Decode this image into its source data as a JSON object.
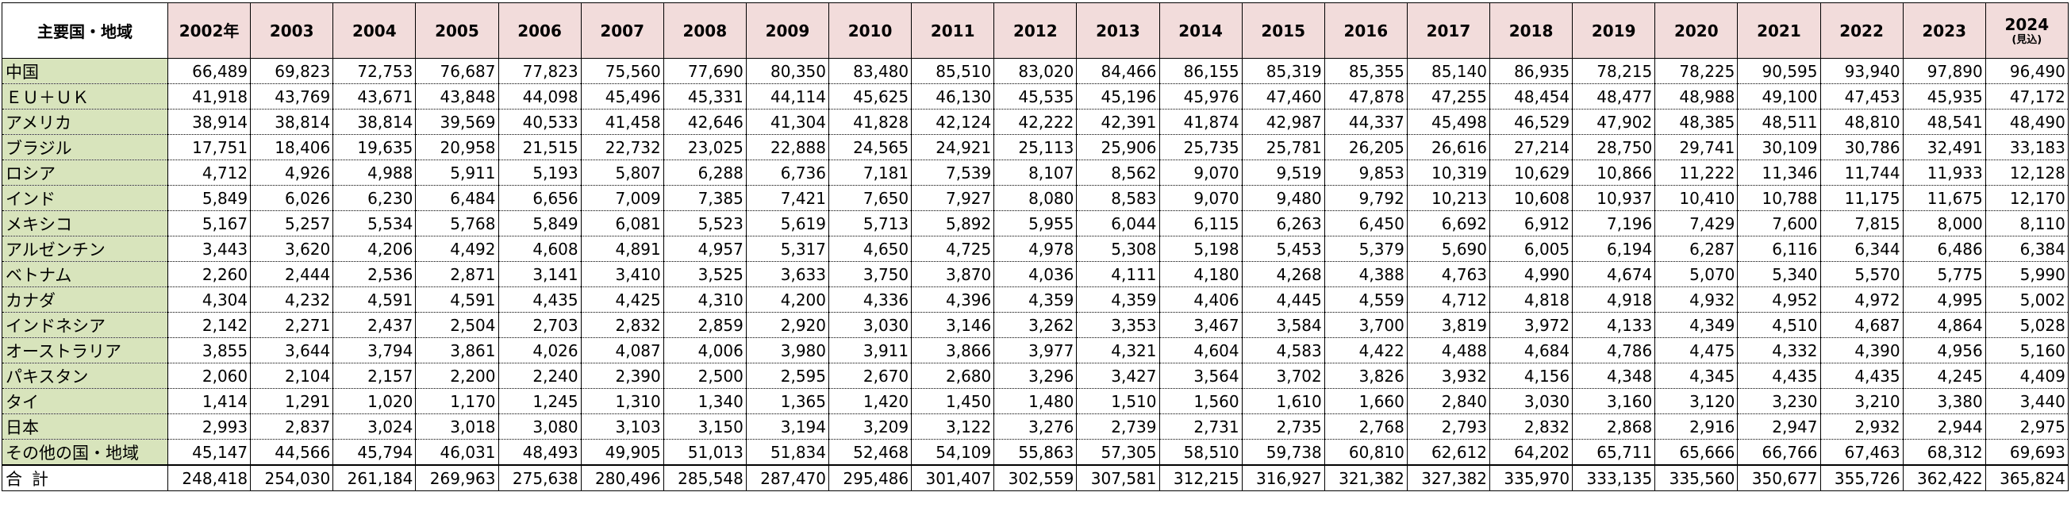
{
  "table": {
    "corner_label": "主要国・地域",
    "years": [
      {
        "label": "2002年",
        "note": ""
      },
      {
        "label": "2003",
        "note": ""
      },
      {
        "label": "2004",
        "note": ""
      },
      {
        "label": "2005",
        "note": ""
      },
      {
        "label": "2006",
        "note": ""
      },
      {
        "label": "2007",
        "note": ""
      },
      {
        "label": "2008",
        "note": ""
      },
      {
        "label": "2009",
        "note": ""
      },
      {
        "label": "2010",
        "note": ""
      },
      {
        "label": "2011",
        "note": ""
      },
      {
        "label": "2012",
        "note": ""
      },
      {
        "label": "2013",
        "note": ""
      },
      {
        "label": "2014",
        "note": ""
      },
      {
        "label": "2015",
        "note": ""
      },
      {
        "label": "2016",
        "note": ""
      },
      {
        "label": "2017",
        "note": ""
      },
      {
        "label": "2018",
        "note": ""
      },
      {
        "label": "2019",
        "note": ""
      },
      {
        "label": "2020",
        "note": ""
      },
      {
        "label": "2021",
        "note": ""
      },
      {
        "label": "2022",
        "note": ""
      },
      {
        "label": "2023",
        "note": ""
      },
      {
        "label": "2024",
        "note": "(見込)"
      }
    ],
    "rows": [
      {
        "name": "中国",
        "values": [
          "66,489",
          "69,823",
          "72,753",
          "76,687",
          "77,823",
          "75,560",
          "77,690",
          "80,350",
          "83,480",
          "85,510",
          "83,020",
          "84,466",
          "86,155",
          "85,319",
          "85,355",
          "85,140",
          "86,935",
          "78,215",
          "78,225",
          "90,595",
          "93,940",
          "97,890",
          "96,490"
        ]
      },
      {
        "name": "ＥＵ＋ＵＫ",
        "values": [
          "41,918",
          "43,769",
          "43,671",
          "43,848",
          "44,098",
          "45,496",
          "45,331",
          "44,114",
          "45,625",
          "46,130",
          "45,535",
          "45,196",
          "45,976",
          "47,460",
          "47,878",
          "47,255",
          "48,454",
          "48,477",
          "48,988",
          "49,100",
          "47,453",
          "45,935",
          "47,172"
        ]
      },
      {
        "name": "アメリカ",
        "values": [
          "38,914",
          "38,814",
          "38,814",
          "39,569",
          "40,533",
          "41,458",
          "42,646",
          "41,304",
          "41,828",
          "42,124",
          "42,222",
          "42,391",
          "41,874",
          "42,987",
          "44,337",
          "45,498",
          "46,529",
          "47,902",
          "48,385",
          "48,511",
          "48,810",
          "48,541",
          "48,490"
        ]
      },
      {
        "name": "ブラジル",
        "values": [
          "17,751",
          "18,406",
          "19,635",
          "20,958",
          "21,515",
          "22,732",
          "23,025",
          "22,888",
          "24,565",
          "24,921",
          "25,113",
          "25,906",
          "25,735",
          "25,781",
          "26,205",
          "26,616",
          "27,214",
          "28,750",
          "29,741",
          "30,109",
          "30,786",
          "32,491",
          "33,183"
        ]
      },
      {
        "name": "ロシア",
        "values": [
          "4,712",
          "4,926",
          "4,988",
          "5,911",
          "5,193",
          "5,807",
          "6,288",
          "6,736",
          "7,181",
          "7,539",
          "8,107",
          "8,562",
          "9,070",
          "9,519",
          "9,853",
          "10,319",
          "10,629",
          "10,866",
          "11,222",
          "11,346",
          "11,744",
          "11,933",
          "12,128"
        ]
      },
      {
        "name": "インド",
        "values": [
          "5,849",
          "6,026",
          "6,230",
          "6,484",
          "6,656",
          "7,009",
          "7,385",
          "7,421",
          "7,650",
          "7,927",
          "8,080",
          "8,583",
          "9,070",
          "9,480",
          "9,792",
          "10,213",
          "10,608",
          "10,937",
          "10,410",
          "10,788",
          "11,175",
          "11,675",
          "12,170"
        ]
      },
      {
        "name": "メキシコ",
        "values": [
          "5,167",
          "5,257",
          "5,534",
          "5,768",
          "5,849",
          "6,081",
          "5,523",
          "5,619",
          "5,713",
          "5,892",
          "5,955",
          "6,044",
          "6,115",
          "6,263",
          "6,450",
          "6,692",
          "6,912",
          "7,196",
          "7,429",
          "7,600",
          "7,815",
          "8,000",
          "8,110"
        ]
      },
      {
        "name": "アルゼンチン",
        "values": [
          "3,443",
          "3,620",
          "4,206",
          "4,492",
          "4,608",
          "4,891",
          "4,957",
          "5,317",
          "4,650",
          "4,725",
          "4,978",
          "5,308",
          "5,198",
          "5,453",
          "5,379",
          "5,690",
          "6,005",
          "6,194",
          "6,287",
          "6,116",
          "6,344",
          "6,486",
          "6,384"
        ]
      },
      {
        "name": "ベトナム",
        "values": [
          "2,260",
          "2,444",
          "2,536",
          "2,871",
          "3,141",
          "3,410",
          "3,525",
          "3,633",
          "3,750",
          "3,870",
          "4,036",
          "4,111",
          "4,180",
          "4,268",
          "4,388",
          "4,763",
          "4,990",
          "4,674",
          "5,070",
          "5,340",
          "5,570",
          "5,775",
          "5,990"
        ]
      },
      {
        "name": "カナダ",
        "values": [
          "4,304",
          "4,232",
          "4,591",
          "4,591",
          "4,435",
          "4,425",
          "4,310",
          "4,200",
          "4,336",
          "4,396",
          "4,359",
          "4,359",
          "4,406",
          "4,445",
          "4,559",
          "4,712",
          "4,818",
          "4,918",
          "4,932",
          "4,952",
          "4,972",
          "4,995",
          "5,002"
        ]
      },
      {
        "name": "インドネシア",
        "values": [
          "2,142",
          "2,271",
          "2,437",
          "2,504",
          "2,703",
          "2,832",
          "2,859",
          "2,920",
          "3,030",
          "3,146",
          "3,262",
          "3,353",
          "3,467",
          "3,584",
          "3,700",
          "3,819",
          "3,972",
          "4,133",
          "4,349",
          "4,510",
          "4,687",
          "4,864",
          "5,028"
        ]
      },
      {
        "name": "オーストラリア",
        "values": [
          "3,855",
          "3,644",
          "3,794",
          "3,861",
          "4,026",
          "4,087",
          "4,006",
          "3,980",
          "3,911",
          "3,866",
          "3,977",
          "4,321",
          "4,604",
          "4,583",
          "4,422",
          "4,488",
          "4,684",
          "4,786",
          "4,475",
          "4,332",
          "4,390",
          "4,956",
          "5,160"
        ]
      },
      {
        "name": "パキスタン",
        "values": [
          "2,060",
          "2,104",
          "2,157",
          "2,200",
          "2,240",
          "2,390",
          "2,500",
          "2,595",
          "2,670",
          "2,680",
          "3,296",
          "3,427",
          "3,564",
          "3,702",
          "3,826",
          "3,932",
          "4,156",
          "4,348",
          "4,345",
          "4,435",
          "4,435",
          "4,245",
          "4,409"
        ]
      },
      {
        "name": "タイ",
        "values": [
          "1,414",
          "1,291",
          "1,020",
          "1,170",
          "1,245",
          "1,310",
          "1,340",
          "1,365",
          "1,420",
          "1,450",
          "1,480",
          "1,510",
          "1,560",
          "1,610",
          "1,660",
          "2,840",
          "3,030",
          "3,160",
          "3,120",
          "3,230",
          "3,210",
          "3,380",
          "3,440"
        ]
      },
      {
        "name": "日本",
        "values": [
          "2,993",
          "2,837",
          "3,024",
          "3,018",
          "3,080",
          "3,103",
          "3,150",
          "3,194",
          "3,209",
          "3,122",
          "3,276",
          "2,739",
          "2,731",
          "2,735",
          "2,768",
          "2,793",
          "2,832",
          "2,868",
          "2,916",
          "2,947",
          "2,932",
          "2,944",
          "2,975"
        ]
      },
      {
        "name": "その他の国・地域",
        "values": [
          "45,147",
          "44,566",
          "45,794",
          "46,031",
          "48,493",
          "49,905",
          "51,013",
          "51,834",
          "52,468",
          "54,109",
          "55,863",
          "57,305",
          "58,510",
          "59,738",
          "60,810",
          "62,612",
          "64,202",
          "65,711",
          "65,666",
          "66,766",
          "67,463",
          "68,312",
          "69,693"
        ]
      },
      {
        "name": "合計",
        "total": true,
        "values": [
          "248,418",
          "254,030",
          "261,184",
          "269,963",
          "275,638",
          "280,496",
          "285,548",
          "287,470",
          "295,486",
          "301,407",
          "302,559",
          "307,581",
          "312,215",
          "316,927",
          "321,382",
          "327,382",
          "335,970",
          "333,135",
          "335,560",
          "350,677",
          "355,726",
          "362,422",
          "365,824"
        ]
      }
    ]
  },
  "colors": {
    "header_bg": "#f2dcdb",
    "name_col_bg": "#d8e4bc",
    "border": "#000000"
  }
}
